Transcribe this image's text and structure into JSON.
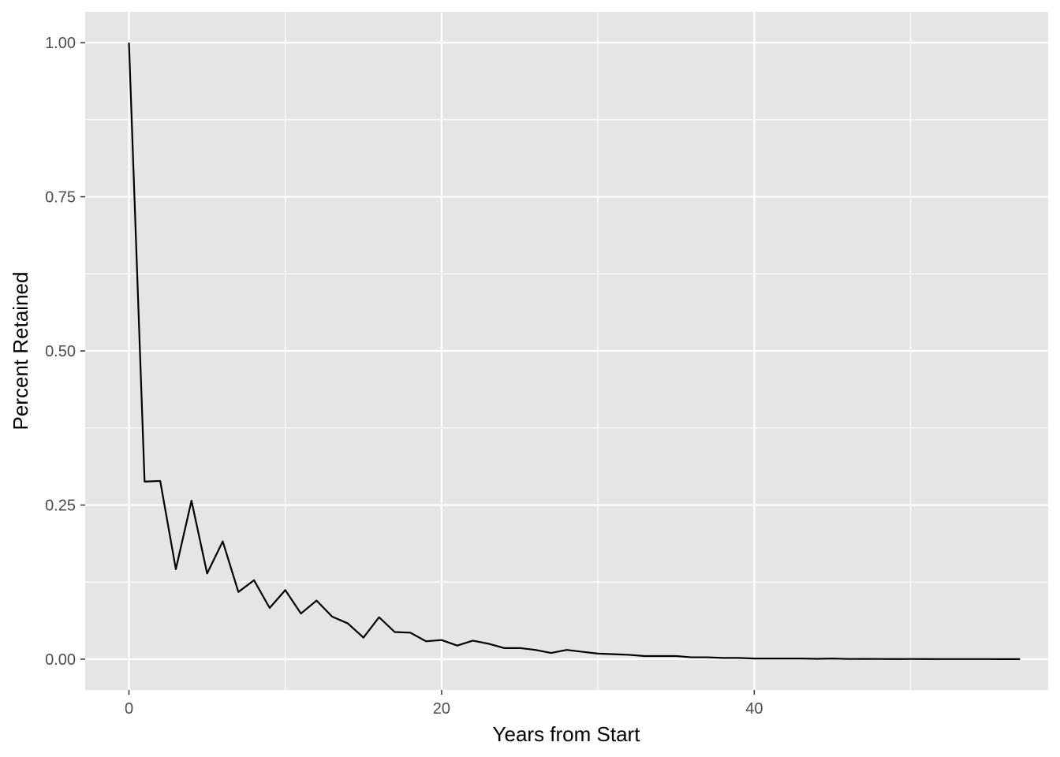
{
  "chart_data": {
    "type": "line",
    "title": "",
    "xlabel": "Years from Start",
    "ylabel": "Percent Retained",
    "xlim": [
      -2.8,
      58.8
    ],
    "ylim": [
      -0.05,
      1.05
    ],
    "x_ticks": [
      0,
      20,
      40
    ],
    "x_tick_labels": [
      "0",
      "20",
      "40"
    ],
    "x_minor_ticks": [
      10,
      30,
      50
    ],
    "y_ticks": [
      0,
      0.25,
      0.5,
      0.75,
      1.0
    ],
    "y_tick_labels": [
      "0.00",
      "0.25",
      "0.50",
      "0.75",
      "1.00"
    ],
    "y_minor_ticks": [
      0.125,
      0.375,
      0.625,
      0.875
    ],
    "grid": true,
    "legend": "none",
    "colors": {
      "panel": "#e5e5e5",
      "grid": "#ffffff",
      "line": "#000000",
      "tick_text": "#4d4d4d",
      "tick_mark": "#333333"
    },
    "series": [
      {
        "x": [
          0,
          1,
          2,
          3,
          4,
          5,
          6,
          7,
          8,
          9,
          10,
          11,
          12,
          13,
          14,
          15,
          16,
          17,
          18,
          19,
          20,
          21,
          22,
          23,
          24,
          25,
          26,
          27,
          28,
          29,
          30,
          31,
          32,
          33,
          34,
          35,
          36,
          37,
          38,
          39,
          40,
          41,
          42,
          43,
          44,
          45,
          46,
          47,
          48,
          49,
          50,
          51,
          52,
          53,
          54,
          55,
          56,
          57
        ],
        "y": [
          1.0,
          0.288,
          0.289,
          0.146,
          0.257,
          0.139,
          0.191,
          0.109,
          0.128,
          0.083,
          0.112,
          0.074,
          0.095,
          0.069,
          0.058,
          0.035,
          0.068,
          0.044,
          0.043,
          0.029,
          0.031,
          0.022,
          0.03,
          0.025,
          0.018,
          0.018,
          0.015,
          0.01,
          0.015,
          0.012,
          0.009,
          0.008,
          0.007,
          0.005,
          0.005,
          0.005,
          0.003,
          0.003,
          0.002,
          0.002,
          0.001,
          0.001,
          0.001,
          0.001,
          0.0005,
          0.001,
          0.0003,
          0.0004,
          0.0003,
          0.0002,
          0.0003,
          0.0002,
          0.0001,
          0.0001,
          0.0001,
          0.0001,
          0.0,
          0.0
        ]
      }
    ]
  }
}
